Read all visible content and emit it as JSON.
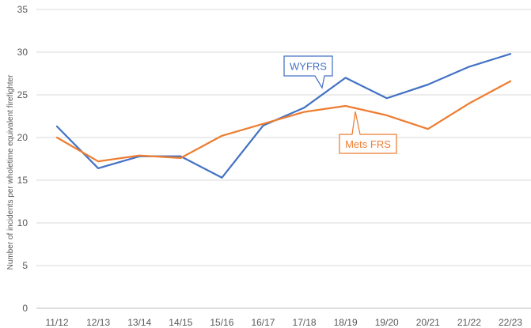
{
  "chart_data": {
    "type": "line",
    "categories": [
      "11/12",
      "12/13",
      "13/14",
      "14/15",
      "15/16",
      "16/17",
      "17/18",
      "18/19",
      "19/20",
      "20/21",
      "21/22",
      "22/23"
    ],
    "series": [
      {
        "name": "WYFRS",
        "color": "#4472C4",
        "values": [
          21.3,
          16.4,
          17.8,
          17.8,
          15.3,
          21.4,
          23.5,
          27.0,
          24.6,
          26.2,
          28.3,
          29.8
        ]
      },
      {
        "name": "Mets FRS",
        "color": "#ED7D31",
        "values": [
          20.0,
          17.2,
          17.9,
          17.6,
          20.2,
          21.6,
          23.0,
          23.7,
          22.6,
          21.0,
          24.0,
          26.6
        ]
      }
    ],
    "ylabel": "Number of incidents per wholetime equivalent firefighter",
    "ylim": [
      0,
      35
    ],
    "yticks": [
      0,
      5,
      10,
      15,
      20,
      25,
      30,
      35
    ],
    "grid": true,
    "legend": "callouts"
  }
}
